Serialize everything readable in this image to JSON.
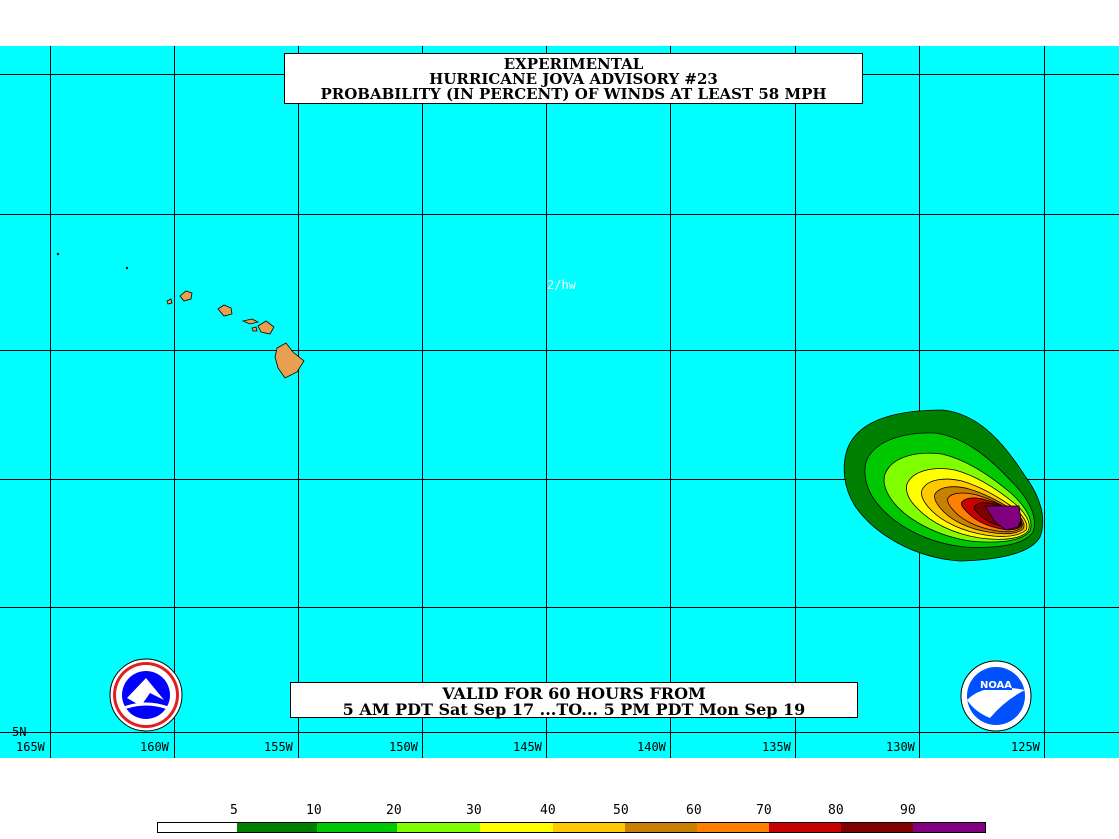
{
  "title": {
    "line1": "EXPERIMENTAL",
    "line2": "HURRICANE JOVA ADVISORY #23",
    "line3": "PROBABILITY (IN PERCENT) OF WINDS AT LEAST 58 MPH"
  },
  "valid": {
    "line1": "VALID FOR 60 HOURS FROM",
    "line2": "5 AM PDT Sat Sep 17 ...TO... 5 PM PDT Mon Sep 19"
  },
  "credit": "2/hw",
  "lat_label": "5N",
  "lon_labels": [
    "165W",
    "160W",
    "155W",
    "150W",
    "145W",
    "140W",
    "135W",
    "130W",
    "125W"
  ],
  "legend": {
    "thresholds": [
      "5",
      "10",
      "20",
      "30",
      "40",
      "50",
      "60",
      "70",
      "80",
      "90"
    ],
    "colors": [
      "#ffffff",
      "#008000",
      "#00c800",
      "#80ff00",
      "#ffff00",
      "#ffc800",
      "#c88000",
      "#ff8000",
      "#c80000",
      "#800000",
      "#800080"
    ]
  },
  "colors": {
    "ocean": "#00ffff",
    "land": "#e8a050",
    "grid": "#000000"
  },
  "logos": {
    "left": "NWS seal",
    "right": "NOAA"
  }
}
